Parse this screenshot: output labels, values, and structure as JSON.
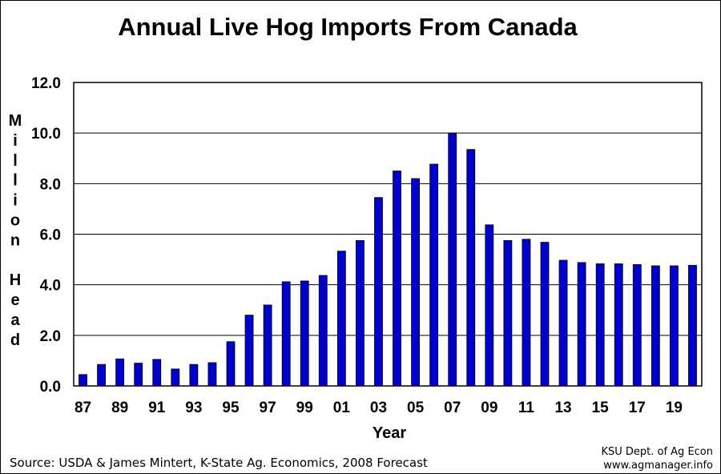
{
  "chart_data": {
    "type": "bar",
    "title": "Annual Live Hog Imports From Canada",
    "xlabel": "Year",
    "ylabel": "Million Head",
    "ylim": [
      0,
      12
    ],
    "yticks": [
      "0.0",
      "2.0",
      "4.0",
      "6.0",
      "8.0",
      "10.0",
      "12.0"
    ],
    "grid": true,
    "legend": "none",
    "bar_color": "#0000CC",
    "categories": [
      "87",
      "88",
      "89",
      "90",
      "91",
      "92",
      "93",
      "94",
      "95",
      "96",
      "97",
      "98",
      "99",
      "00",
      "01",
      "02",
      "03",
      "04",
      "05",
      "06",
      "07",
      "08",
      "09",
      "10",
      "11",
      "12",
      "13",
      "14",
      "15",
      "16",
      "17",
      "18",
      "19",
      "20"
    ],
    "xtick_labels": [
      "87",
      "89",
      "91",
      "93",
      "95",
      "97",
      "99",
      "01",
      "03",
      "05",
      "07",
      "09",
      "11",
      "13",
      "15",
      "17",
      "19"
    ],
    "values": [
      0.45,
      0.85,
      1.07,
      0.9,
      1.05,
      0.67,
      0.85,
      0.92,
      1.75,
      2.8,
      3.2,
      4.12,
      4.15,
      4.37,
      5.33,
      5.75,
      7.45,
      8.5,
      8.2,
      8.77,
      10.0,
      9.35,
      6.37,
      5.75,
      5.8,
      5.68,
      4.97,
      4.88,
      4.83,
      4.83,
      4.8,
      4.75,
      4.75,
      4.77
    ]
  },
  "footer": {
    "source": "Source: USDA & James Mintert, K-State Ag. Economics, 2008 Forecast",
    "credit_line1": "KSU Dept. of Ag Econ",
    "credit_line2": "www.agmanager.info"
  }
}
